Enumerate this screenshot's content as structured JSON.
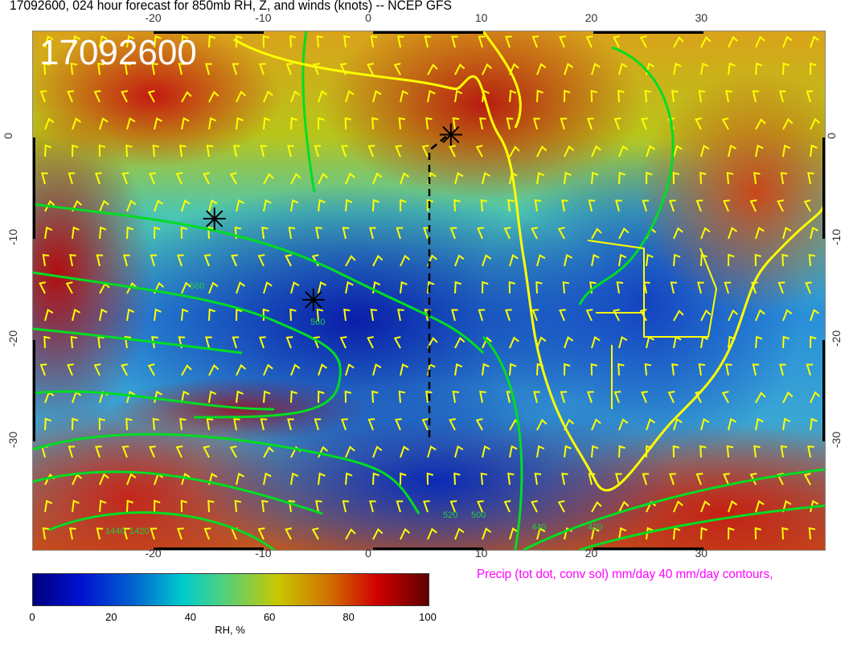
{
  "title": "17092600, 024 hour forecast for 850mb RH, Z, and winds (knots)  -- NCEP GFS",
  "map": {
    "datestamp": "17092600",
    "lon_range": [
      -31,
      41
    ],
    "lat_range": [
      -40.7,
      10.5
    ],
    "lon_ticks": [
      "-20",
      "-10",
      "0",
      "10",
      "20",
      "30"
    ],
    "lat_ticks": [
      "0",
      "-10",
      "-20",
      "-30"
    ],
    "contour_labels": [
      "560",
      "560",
      "520",
      "500",
      "440",
      "420",
      "1440",
      "1420"
    ],
    "markers": [
      {
        "symbol": "asterisk",
        "lon": -14.5,
        "lat": -8
      },
      {
        "symbol": "asterisk",
        "lon": -5.5,
        "lat": -16
      },
      {
        "symbol": "asterisk",
        "lon": 7,
        "lat": 0.3
      }
    ],
    "colors": {
      "coastline": "#ffff00",
      "contours": "#00dd22",
      "wind_barbs": "#ffff00"
    }
  },
  "colorbar": {
    "ticks": [
      "0",
      "20",
      "40",
      "60",
      "80",
      "100"
    ],
    "label": "RH, %"
  },
  "precip_note": "Precip (tot dot, conv sol) mm/day 40 mm/day contours,"
}
